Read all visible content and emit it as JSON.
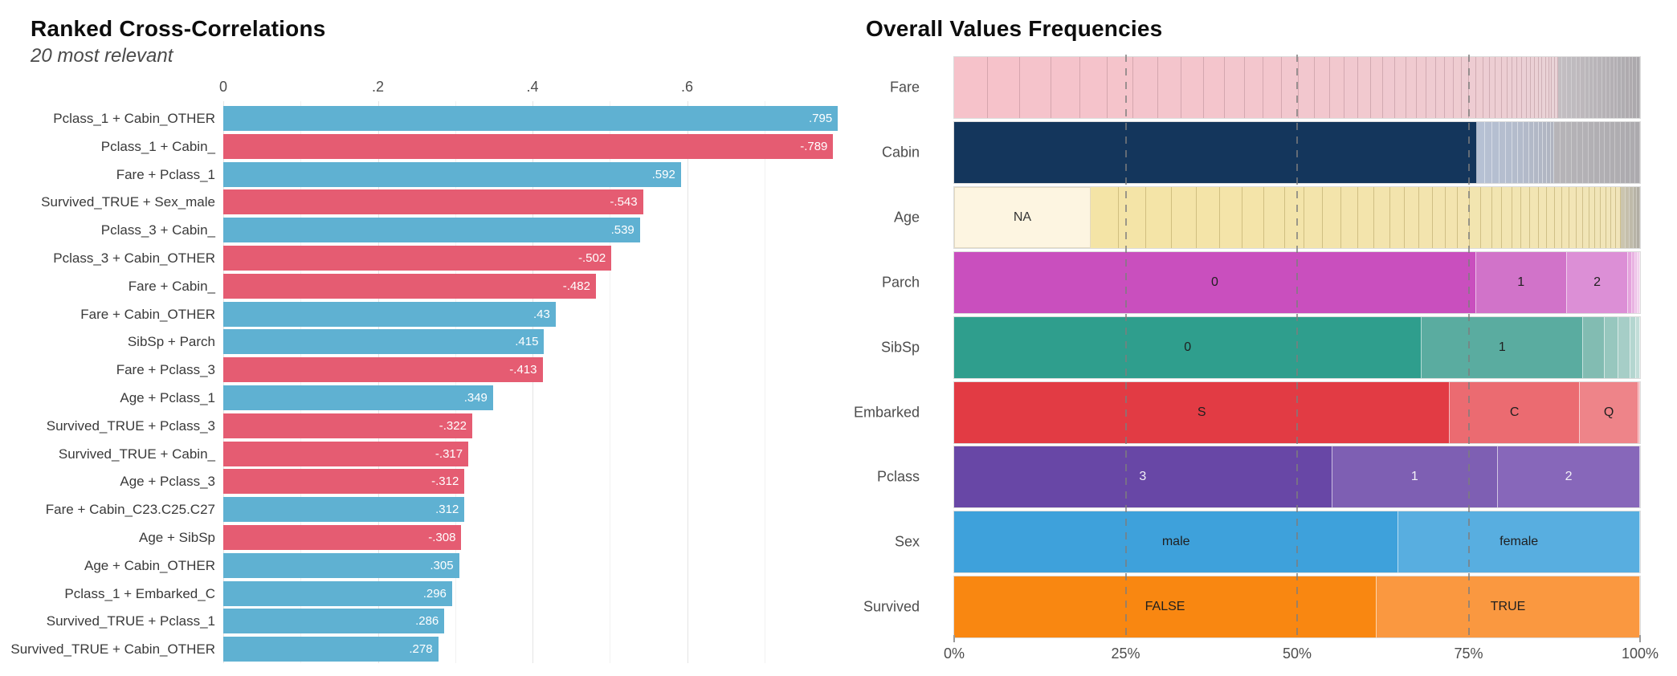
{
  "chart_data": [
    {
      "type": "bar",
      "orientation": "horizontal",
      "title": "Ranked Cross-Correlations",
      "subtitle": "20 most relevant",
      "xlabel": "",
      "ylabel": "",
      "xlim": [
        0,
        0.8
      ],
      "grid": "major-and-minor",
      "legend": "none",
      "colors": {
        "positive": "#5FB1D2",
        "negative": "#E55C72",
        "value_label": "#ffffff"
      },
      "xticks": [
        {
          "v": 0.0,
          "label": "0"
        },
        {
          "v": 0.2,
          "label": ".2"
        },
        {
          "v": 0.4,
          "label": ".4"
        },
        {
          "v": 0.6,
          "label": ".6"
        }
      ],
      "xgrid_minor": [
        0.1,
        0.3,
        0.5,
        0.7
      ],
      "bars": [
        {
          "pair": "Pclass_1 + Cabin_OTHER",
          "value": 0.795,
          "display": ".795"
        },
        {
          "pair": "Pclass_1 + Cabin_",
          "value": -0.789,
          "display": "-.789"
        },
        {
          "pair": "Fare + Pclass_1",
          "value": 0.592,
          "display": ".592"
        },
        {
          "pair": "Survived_TRUE + Sex_male",
          "value": -0.543,
          "display": "-.543"
        },
        {
          "pair": "Pclass_3 + Cabin_",
          "value": 0.539,
          "display": ".539"
        },
        {
          "pair": "Pclass_3 + Cabin_OTHER",
          "value": -0.502,
          "display": "-.502"
        },
        {
          "pair": "Fare + Cabin_",
          "value": -0.482,
          "display": "-.482"
        },
        {
          "pair": "Fare + Cabin_OTHER",
          "value": 0.43,
          "display": ".43"
        },
        {
          "pair": "SibSp + Parch",
          "value": 0.415,
          "display": ".415"
        },
        {
          "pair": "Fare + Pclass_3",
          "value": -0.413,
          "display": "-.413"
        },
        {
          "pair": "Age + Pclass_1",
          "value": 0.349,
          "display": ".349"
        },
        {
          "pair": "Survived_TRUE + Pclass_3",
          "value": -0.322,
          "display": "-.322"
        },
        {
          "pair": "Survived_TRUE + Cabin_",
          "value": -0.317,
          "display": "-.317"
        },
        {
          "pair": "Age + Pclass_3",
          "value": -0.312,
          "display": "-.312"
        },
        {
          "pair": "Fare + Cabin_C23.C25.C27",
          "value": 0.312,
          "display": ".312"
        },
        {
          "pair": "Age + SibSp",
          "value": -0.308,
          "display": "-.308"
        },
        {
          "pair": "Age + Cabin_OTHER",
          "value": 0.305,
          "display": ".305"
        },
        {
          "pair": "Pclass_1 + Embarked_C",
          "value": 0.296,
          "display": ".296"
        },
        {
          "pair": "Survived_TRUE + Pclass_1",
          "value": 0.286,
          "display": ".286"
        },
        {
          "pair": "Survived_TRUE + Cabin_OTHER",
          "value": 0.278,
          "display": ".278"
        }
      ]
    },
    {
      "type": "stacked-bar-normalized",
      "title": "Overall Values Frequencies",
      "xlabel": "",
      "xlim_pct": [
        0,
        100
      ],
      "gridlines_dashed_pct": [
        25,
        50,
        75
      ],
      "xticks": [
        {
          "v": 0,
          "label": "0%"
        },
        {
          "v": 25,
          "label": "25%"
        },
        {
          "v": 50,
          "label": "50%"
        },
        {
          "v": 75,
          "label": "75%"
        },
        {
          "v": 100,
          "label": "100%"
        }
      ],
      "rows": [
        {
          "label": "Fare",
          "segments": [
            {
              "kind": "stripes",
              "pct": 88.0,
              "n": 48,
              "decay": 0.948,
              "c0": "#F6C2CA",
              "c1": "#E9D3D7",
              "sep": "rgba(146,106,116,0.32)"
            },
            {
              "kind": "stripes",
              "pct": 12.0,
              "n": 20,
              "decay": 0.985,
              "c0": "#C3BEC2",
              "c1": "#ABA8AC",
              "sep": "rgba(255,255,255,0.28)"
            }
          ]
        },
        {
          "label": "Cabin",
          "segments": [
            {
              "kind": "seg",
              "pct": 76.2,
              "color": "#14365C",
              "label": "",
              "text": "#ffffff"
            },
            {
              "kind": "stripes",
              "pct": 11.3,
              "n": 14,
              "decay": 0.94,
              "c0": "#B6C1D4",
              "c1": "#B0B4C0",
              "sep": "rgba(255,255,255,0.45)"
            },
            {
              "kind": "stripes",
              "pct": 12.5,
              "n": 16,
              "decay": 0.985,
              "c0": "#B6B4B8",
              "c1": "#ACAAAE",
              "sep": "rgba(255,255,255,0.3)"
            }
          ]
        },
        {
          "label": "Age",
          "segments": [
            {
              "kind": "seg",
              "pct": 19.9,
              "color": "#FDF5E1",
              "label": "NA",
              "text": "#333333",
              "edge": "#E3DAC2"
            },
            {
              "kind": "stripes",
              "pct": 77.3,
              "n": 40,
              "decay": 0.955,
              "c0": "#F4E4A6",
              "c1": "#F1E5BA",
              "sep": "rgba(153,132,66,0.38)"
            },
            {
              "kind": "stripes",
              "pct": 2.8,
              "n": 5,
              "decay": 0.9,
              "c0": "#CBC5AF",
              "c1": "#B2AEA4",
              "sep": "rgba(255,255,255,0.3)"
            }
          ]
        },
        {
          "label": "Parch",
          "segments": [
            {
              "kind": "seg",
              "pct": 76.1,
              "color": "#C94FBE",
              "label": "0",
              "text": "#1f1f1f"
            },
            {
              "kind": "seg",
              "pct": 13.2,
              "color": "#D173C9",
              "label": "1",
              "text": "#1f1f1f"
            },
            {
              "kind": "seg",
              "pct": 9.0,
              "color": "#DC8FD6",
              "label": "2",
              "text": "#1f1f1f"
            },
            {
              "kind": "stripes",
              "pct": 1.7,
              "n": 4,
              "decay": 0.8,
              "c0": "#E5A3DD",
              "c1": "#F2D3ED",
              "sep": "rgba(255,255,255,0.5)"
            }
          ]
        },
        {
          "label": "SibSp",
          "segments": [
            {
              "kind": "seg",
              "pct": 68.2,
              "color": "#2F9E8D",
              "label": "0",
              "text": "#1f1f1f"
            },
            {
              "kind": "seg",
              "pct": 23.5,
              "color": "#5AACA0",
              "label": "1",
              "text": "#1f1f1f"
            },
            {
              "kind": "seg",
              "pct": 3.1,
              "color": "#82BCB2",
              "label": "",
              "text": "#1f1f1f"
            },
            {
              "kind": "seg",
              "pct": 2.0,
              "color": "#97C7BE",
              "label": "",
              "text": "#1f1f1f"
            },
            {
              "kind": "seg",
              "pct": 1.8,
              "color": "#A6CEC7",
              "label": "",
              "text": "#1f1f1f"
            },
            {
              "kind": "seg",
              "pct": 0.8,
              "color": "#B4D6D0",
              "label": "",
              "text": "#1f1f1f"
            },
            {
              "kind": "seg",
              "pct": 0.6,
              "color": "#C2DDD8",
              "label": "",
              "text": "#1f1f1f"
            }
          ]
        },
        {
          "label": "Embarked",
          "segments": [
            {
              "kind": "seg",
              "pct": 72.3,
              "color": "#E23B44",
              "label": "S",
              "text": "#1f1f1f"
            },
            {
              "kind": "seg",
              "pct": 18.9,
              "color": "#EB6B71",
              "label": "C",
              "text": "#1f1f1f"
            },
            {
              "kind": "seg",
              "pct": 8.6,
              "color": "#EE8489",
              "label": "Q",
              "text": "#1f1f1f"
            },
            {
              "kind": "seg",
              "pct": 0.2,
              "color": "#F2A3A7",
              "label": "",
              "text": "#1f1f1f"
            }
          ]
        },
        {
          "label": "Pclass",
          "segments": [
            {
              "kind": "seg",
              "pct": 55.1,
              "color": "#6847A6",
              "label": "3",
              "text": "#F2F0F7"
            },
            {
              "kind": "seg",
              "pct": 24.2,
              "color": "#7E5FB3",
              "label": "1",
              "text": "#F2F0F7"
            },
            {
              "kind": "seg",
              "pct": 20.7,
              "color": "#8767BA",
              "label": "2",
              "text": "#F2F0F7"
            }
          ]
        },
        {
          "label": "Sex",
          "segments": [
            {
              "kind": "seg",
              "pct": 64.8,
              "color": "#3EA1DB",
              "label": "male",
              "text": "#1f1f1f"
            },
            {
              "kind": "seg",
              "pct": 35.2,
              "color": "#58AEE0",
              "label": "female",
              "text": "#1f1f1f"
            }
          ]
        },
        {
          "label": "Survived",
          "segments": [
            {
              "kind": "seg",
              "pct": 61.6,
              "color": "#F98711",
              "label": "FALSE",
              "text": "#1f1f1f"
            },
            {
              "kind": "seg",
              "pct": 38.4,
              "color": "#FA9840",
              "label": "TRUE",
              "text": "#1f1f1f"
            }
          ]
        }
      ]
    }
  ]
}
